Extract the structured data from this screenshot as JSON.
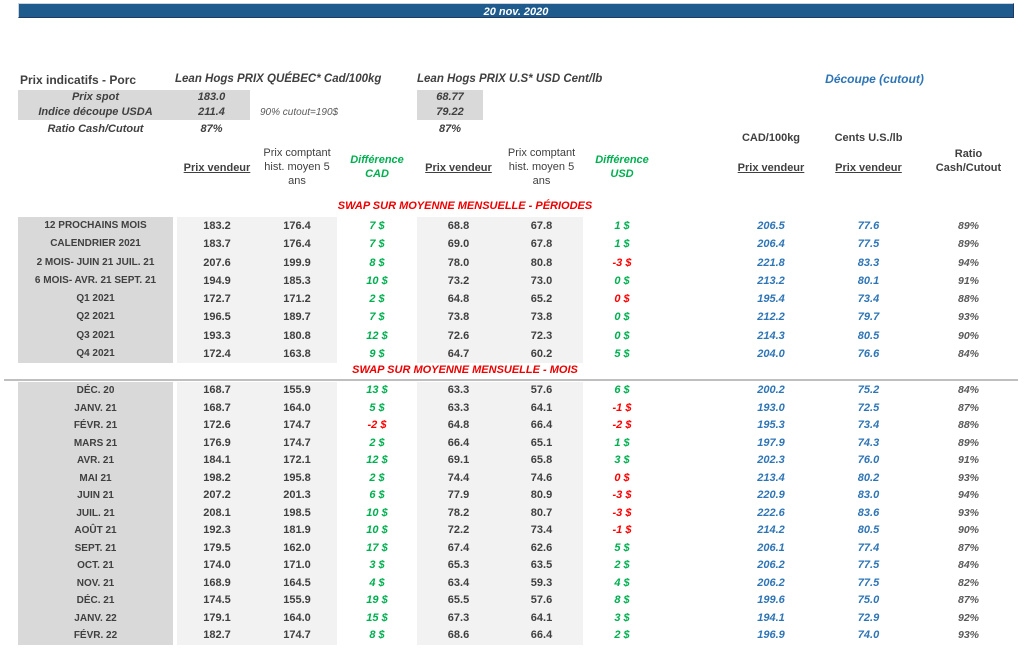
{
  "titlebar": {
    "date": "20 nov. 2020"
  },
  "header": {
    "title": "Prix indicatifs - Porc",
    "quebec_title": "Lean Hogs PRIX QUÉBEC* Cad/100kg",
    "us_title": "Lean Hogs PRIX U.S* USD Cent/lb",
    "cutout_title": "Découpe (cutout)",
    "spot_label": "Prix spot",
    "spot_cad": "183.0",
    "spot_usd": "68.77",
    "indice_label": "Indice découpe USDA",
    "indice_cad": "211.4",
    "indice_usd": "79.22",
    "cutout_note": "90% cutout=190$",
    "ratio_label": "Ratio Cash/Cutout",
    "ratio_cad": "87%",
    "ratio_usd": "87%"
  },
  "columns": {
    "prix_vendeur": "Prix vendeur",
    "prix_comptant_l1": "Prix comptant",
    "prix_comptant_l2": "hist. moyen 5",
    "prix_comptant_l3": "ans",
    "difference": "Différence",
    "cad": "CAD",
    "usd": "USD",
    "cad_100kg": "CAD/100kg",
    "cents_us_lb": "Cents U.S./lb",
    "ratio_l1": "Ratio",
    "ratio_l2": "Cash/Cutout"
  },
  "colors": {
    "bar_blue": "#1F5C8D",
    "accent_blue": "#2E75B6",
    "positive_green": "#00B050",
    "negative_red": "#FF0000",
    "section_red": "#EE0000",
    "label_bg": "#D9D9D9",
    "cell_bg": "#F2F2F2"
  },
  "sections": {
    "periodes": {
      "title": "SWAP SUR MOYENNE MENSUELLE - PÉRIODES",
      "rows": [
        {
          "label": "12 PROCHAINS MOIS",
          "pv_cad": "183.2",
          "hist_cad": "176.4",
          "diff_cad": "7 $",
          "diff_cad_color": "green",
          "pv_usd": "68.8",
          "hist_usd": "67.8",
          "diff_usd": "1 $",
          "diff_usd_color": "green",
          "cutout_cad": "206.5",
          "cutout_usd": "77.6",
          "ratio": "89%"
        },
        {
          "label": "CALENDRIER 2021",
          "pv_cad": "183.7",
          "hist_cad": "176.4",
          "diff_cad": "7 $",
          "diff_cad_color": "green",
          "pv_usd": "69.0",
          "hist_usd": "67.8",
          "diff_usd": "1 $",
          "diff_usd_color": "green",
          "cutout_cad": "206.4",
          "cutout_usd": "77.5",
          "ratio": "89%"
        },
        {
          "label": "2 MOIS- JUIN 21 JUIL. 21",
          "pv_cad": "207.6",
          "hist_cad": "199.9",
          "diff_cad": "8 $",
          "diff_cad_color": "green",
          "pv_usd": "78.0",
          "hist_usd": "80.8",
          "diff_usd": "-3 $",
          "diff_usd_color": "red",
          "cutout_cad": "221.8",
          "cutout_usd": "83.3",
          "ratio": "94%"
        },
        {
          "label": "6 MOIS- AVR. 21 SEPT. 21",
          "pv_cad": "194.9",
          "hist_cad": "185.3",
          "diff_cad": "10 $",
          "diff_cad_color": "green",
          "pv_usd": "73.2",
          "hist_usd": "73.0",
          "diff_usd": "0 $",
          "diff_usd_color": "green",
          "cutout_cad": "213.2",
          "cutout_usd": "80.1",
          "ratio": "91%"
        },
        {
          "label": "Q1 2021",
          "pv_cad": "172.7",
          "hist_cad": "171.2",
          "diff_cad": "2 $",
          "diff_cad_color": "green",
          "pv_usd": "64.8",
          "hist_usd": "65.2",
          "diff_usd": "0 $",
          "diff_usd_color": "red",
          "cutout_cad": "195.4",
          "cutout_usd": "73.4",
          "ratio": "88%"
        },
        {
          "label": "Q2 2021",
          "pv_cad": "196.5",
          "hist_cad": "189.7",
          "diff_cad": "7 $",
          "diff_cad_color": "green",
          "pv_usd": "73.8",
          "hist_usd": "73.8",
          "diff_usd": "0 $",
          "diff_usd_color": "green",
          "cutout_cad": "212.2",
          "cutout_usd": "79.7",
          "ratio": "93%"
        },
        {
          "label": "Q3 2021",
          "pv_cad": "193.3",
          "hist_cad": "180.8",
          "diff_cad": "12 $",
          "diff_cad_color": "green",
          "pv_usd": "72.6",
          "hist_usd": "72.3",
          "diff_usd": "0 $",
          "diff_usd_color": "green",
          "cutout_cad": "214.3",
          "cutout_usd": "80.5",
          "ratio": "90%"
        },
        {
          "label": "Q4 2021",
          "pv_cad": "172.4",
          "hist_cad": "163.8",
          "diff_cad": "9 $",
          "diff_cad_color": "green",
          "pv_usd": "64.7",
          "hist_usd": "60.2",
          "diff_usd": "5 $",
          "diff_usd_color": "green",
          "cutout_cad": "204.0",
          "cutout_usd": "76.6",
          "ratio": "84%"
        }
      ]
    },
    "mois": {
      "title": "SWAP SUR MOYENNE MENSUELLE - MOIS",
      "rows": [
        {
          "label": "DÉC. 20",
          "pv_cad": "168.7",
          "hist_cad": "155.9",
          "diff_cad": "13 $",
          "diff_cad_color": "green",
          "pv_usd": "63.3",
          "hist_usd": "57.6",
          "diff_usd": "6 $",
          "diff_usd_color": "green",
          "cutout_cad": "200.2",
          "cutout_usd": "75.2",
          "ratio": "84%"
        },
        {
          "label": "JANV. 21",
          "pv_cad": "168.7",
          "hist_cad": "164.0",
          "diff_cad": "5 $",
          "diff_cad_color": "green",
          "pv_usd": "63.3",
          "hist_usd": "64.1",
          "diff_usd": "-1 $",
          "diff_usd_color": "red",
          "cutout_cad": "193.0",
          "cutout_usd": "72.5",
          "ratio": "87%"
        },
        {
          "label": "FÉVR. 21",
          "pv_cad": "172.6",
          "hist_cad": "174.7",
          "diff_cad": "-2 $",
          "diff_cad_color": "red",
          "pv_usd": "64.8",
          "hist_usd": "66.4",
          "diff_usd": "-2 $",
          "diff_usd_color": "red",
          "cutout_cad": "195.3",
          "cutout_usd": "73.4",
          "ratio": "88%"
        },
        {
          "label": "MARS 21",
          "pv_cad": "176.9",
          "hist_cad": "174.7",
          "diff_cad": "2 $",
          "diff_cad_color": "green",
          "pv_usd": "66.4",
          "hist_usd": "65.1",
          "diff_usd": "1 $",
          "diff_usd_color": "green",
          "cutout_cad": "197.9",
          "cutout_usd": "74.3",
          "ratio": "89%"
        },
        {
          "label": "AVR. 21",
          "pv_cad": "184.1",
          "hist_cad": "172.1",
          "diff_cad": "12 $",
          "diff_cad_color": "green",
          "pv_usd": "69.1",
          "hist_usd": "65.8",
          "diff_usd": "3 $",
          "diff_usd_color": "green",
          "cutout_cad": "202.3",
          "cutout_usd": "76.0",
          "ratio": "91%"
        },
        {
          "label": "MAI 21",
          "pv_cad": "198.2",
          "hist_cad": "195.8",
          "diff_cad": "2 $",
          "diff_cad_color": "green",
          "pv_usd": "74.4",
          "hist_usd": "74.6",
          "diff_usd": "0 $",
          "diff_usd_color": "red",
          "cutout_cad": "213.4",
          "cutout_usd": "80.2",
          "ratio": "93%"
        },
        {
          "label": "JUIN 21",
          "pv_cad": "207.2",
          "hist_cad": "201.3",
          "diff_cad": "6 $",
          "diff_cad_color": "green",
          "pv_usd": "77.9",
          "hist_usd": "80.9",
          "diff_usd": "-3 $",
          "diff_usd_color": "red",
          "cutout_cad": "220.9",
          "cutout_usd": "83.0",
          "ratio": "94%"
        },
        {
          "label": "JUIL. 21",
          "pv_cad": "208.1",
          "hist_cad": "198.5",
          "diff_cad": "10 $",
          "diff_cad_color": "green",
          "pv_usd": "78.2",
          "hist_usd": "80.7",
          "diff_usd": "-3 $",
          "diff_usd_color": "red",
          "cutout_cad": "222.6",
          "cutout_usd": "83.6",
          "ratio": "93%"
        },
        {
          "label": "AOÛT 21",
          "pv_cad": "192.3",
          "hist_cad": "181.9",
          "diff_cad": "10 $",
          "diff_cad_color": "green",
          "pv_usd": "72.2",
          "hist_usd": "73.4",
          "diff_usd": "-1 $",
          "diff_usd_color": "red",
          "cutout_cad": "214.2",
          "cutout_usd": "80.5",
          "ratio": "90%"
        },
        {
          "label": "SEPT. 21",
          "pv_cad": "179.5",
          "hist_cad": "162.0",
          "diff_cad": "17 $",
          "diff_cad_color": "green",
          "pv_usd": "67.4",
          "hist_usd": "62.6",
          "diff_usd": "5 $",
          "diff_usd_color": "green",
          "cutout_cad": "206.1",
          "cutout_usd": "77.4",
          "ratio": "87%"
        },
        {
          "label": "OCT. 21",
          "pv_cad": "174.0",
          "hist_cad": "171.0",
          "diff_cad": "3 $",
          "diff_cad_color": "green",
          "pv_usd": "65.3",
          "hist_usd": "63.5",
          "diff_usd": "2 $",
          "diff_usd_color": "green",
          "cutout_cad": "206.2",
          "cutout_usd": "77.5",
          "ratio": "84%"
        },
        {
          "label": "NOV. 21",
          "pv_cad": "168.9",
          "hist_cad": "164.5",
          "diff_cad": "4 $",
          "diff_cad_color": "green",
          "pv_usd": "63.4",
          "hist_usd": "59.3",
          "diff_usd": "4 $",
          "diff_usd_color": "green",
          "cutout_cad": "206.2",
          "cutout_usd": "77.5",
          "ratio": "82%"
        },
        {
          "label": "DÉC. 21",
          "pv_cad": "174.5",
          "hist_cad": "155.9",
          "diff_cad": "19 $",
          "diff_cad_color": "green",
          "pv_usd": "65.5",
          "hist_usd": "57.6",
          "diff_usd": "8 $",
          "diff_usd_color": "green",
          "cutout_cad": "199.6",
          "cutout_usd": "75.0",
          "ratio": "87%"
        },
        {
          "label": "JANV. 22",
          "pv_cad": "179.1",
          "hist_cad": "164.0",
          "diff_cad": "15 $",
          "diff_cad_color": "green",
          "pv_usd": "67.3",
          "hist_usd": "64.1",
          "diff_usd": "3 $",
          "diff_usd_color": "green",
          "cutout_cad": "194.1",
          "cutout_usd": "72.9",
          "ratio": "92%"
        },
        {
          "label": "FÉVR. 22",
          "pv_cad": "182.7",
          "hist_cad": "174.7",
          "diff_cad": "8 $",
          "diff_cad_color": "green",
          "pv_usd": "68.6",
          "hist_usd": "66.4",
          "diff_usd": "2 $",
          "diff_usd_color": "green",
          "cutout_cad": "196.9",
          "cutout_usd": "74.0",
          "ratio": "93%"
        }
      ]
    }
  }
}
